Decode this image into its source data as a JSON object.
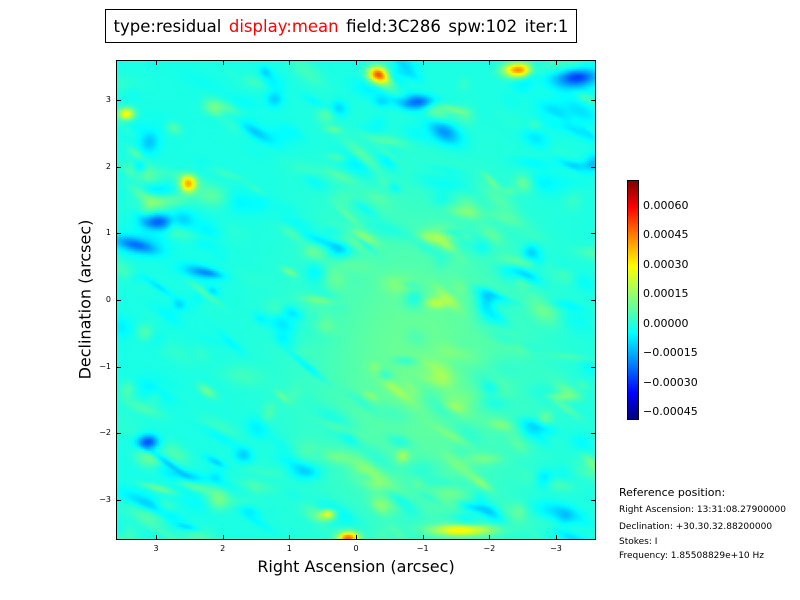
{
  "title": {
    "parts": [
      {
        "text": "type:residual",
        "color": "#000000"
      },
      {
        "text": "display:mean",
        "color": "#ff0000"
      },
      {
        "text": "field:3C286",
        "color": "#000000"
      },
      {
        "text": "spw:102",
        "color": "#000000"
      },
      {
        "text": "iter:1",
        "color": "#000000"
      }
    ]
  },
  "chart_data": {
    "type": "heatmap",
    "colormap": "jet",
    "xlabel": "Right Ascension (arcsec)",
    "ylabel": "Declination (arcsec)",
    "xlim": [
      3.6,
      -3.6
    ],
    "ylim": [
      -3.6,
      3.6
    ],
    "xticks": [
      3,
      2,
      1,
      0,
      -1,
      -2,
      -3
    ],
    "xtick_labels": [
      "3",
      "2",
      "1",
      "0",
      "−1",
      "−2",
      "−3"
    ],
    "yticks": [
      3,
      2,
      1,
      0,
      -1,
      -2,
      -3
    ],
    "ytick_labels": [
      "3",
      "2",
      "1",
      "0",
      "−1",
      "−2",
      "−3"
    ],
    "colorbar": {
      "range": [
        -0.00049,
        0.00073
      ],
      "ticks": [
        0.0006,
        0.00045,
        0.0003,
        0.00015,
        0.0,
        -0.00015,
        -0.0003,
        -0.00045
      ],
      "tick_labels": [
        "0.00060",
        "0.00045",
        "0.00030",
        "0.00015",
        "0.00000",
        "−0.00015",
        "−0.00030",
        "−0.00045"
      ]
    }
  },
  "reference": {
    "heading": "Reference position:",
    "ra": "Right Ascension: 13:31:08.27900000",
    "dec": "Declination: +30.30.32.88200000",
    "stokes": "Stokes: I",
    "frequency": "Frequency: 1.85508829e+10 Hz"
  }
}
